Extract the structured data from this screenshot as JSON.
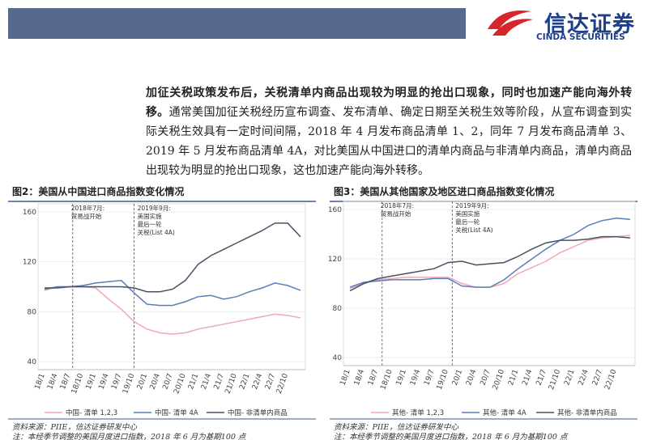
{
  "logo": {
    "name": "信达证券",
    "english": "CINDA SECURITIES"
  },
  "body": {
    "bold": "加征关税政策发布后，关税清单内商品出现较为明显的抢出口现象，同时也加速产能向海外转移。",
    "text": "通常美国加征关税经历宣布调查、发布清单、确定日期至关税生效等阶段，从宣布调查到实际关税生效具有一定时间间隔，2018 年 4 月发布商品清单 1、2，同年 7 月发布商品清单 3、2019 年 5 月发布商品清单 4A，对比美国从中国进口的清单内商品与非清单内商品，清单内商品出现较为明显的抢出口现象，这也加速产能向海外转移。"
  },
  "chart_data": [
    {
      "type": "line",
      "title": "图2：美国从中国进口商品指数变化情况",
      "categories": [
        "18/1",
        "18/4",
        "18/7",
        "18/10",
        "19/1",
        "19/4",
        "19/7",
        "19/10",
        "20/1",
        "20/4",
        "20/7",
        "20/10",
        "21/1",
        "21/4",
        "21/7",
        "21/10",
        "22/1",
        "22/4",
        "22/7",
        "22/10",
        null
      ],
      "series": [
        {
          "name": "中国- 清单 1,2,3",
          "color": "#f2a7b8",
          "values": [
            97,
            100,
            100,
            100,
            99,
            90,
            82,
            72,
            66,
            63,
            62,
            63,
            66,
            68,
            70,
            72,
            74,
            76,
            78,
            77,
            75
          ]
        },
        {
          "name": "中国- 清单 4A",
          "color": "#5b7fb8",
          "values": [
            98,
            100,
            100,
            101,
            103,
            104,
            105,
            95,
            86,
            85,
            85,
            88,
            92,
            93,
            90,
            92,
            96,
            99,
            103,
            101,
            97
          ]
        },
        {
          "name": "中国- 非清单内商品",
          "color": "#4a5064",
          "values": [
            99,
            99,
            100,
            100,
            100,
            100,
            100,
            99,
            96,
            96,
            98,
            105,
            118,
            125,
            130,
            135,
            140,
            145,
            151,
            151,
            140
          ]
        }
      ],
      "ylim": [
        40,
        160
      ],
      "yticks": [
        40,
        80,
        120,
        160
      ],
      "annotations": [
        [
          "2018年7月:",
          "贸易战开始"
        ],
        [
          "2019年9月:",
          "美国实施",
          "最后一轮",
          "关税(List 4A)"
        ]
      ],
      "source": "资料来源：PIIE，信达证券研发中心",
      "note": "注：本经季节调整的美国月度进口指数，2018 年 6 月为基期100 点"
    },
    {
      "type": "line",
      "title": "图3：美国从其他国家及地区进口商品指数变化情况",
      "categories": [
        "18/1",
        "18/4",
        "18/7",
        "18/10",
        "19/1",
        "19/4",
        "19/7",
        "19/10",
        "20/1",
        "20/4",
        "20/7",
        "20/10",
        "21/1",
        "21/4",
        "21/7",
        "21/10",
        "22/1",
        "22/4",
        "22/7",
        "22/10",
        null
      ],
      "series": [
        {
          "name": "其他- 清单 1,2,3",
          "color": "#f2a7b8",
          "values": [
            96,
            100,
            103,
            104,
            105,
            105,
            105,
            105,
            100,
            97,
            97,
            100,
            108,
            113,
            118,
            125,
            130,
            135,
            137,
            138,
            139
          ]
        },
        {
          "name": "其他- 清单 4A",
          "color": "#5b7fb8",
          "values": [
            97,
            101,
            102,
            103,
            103,
            103,
            104,
            104,
            98,
            97,
            97,
            103,
            112,
            120,
            128,
            135,
            140,
            147,
            151,
            153,
            152
          ]
        },
        {
          "name": "其他- 非清单内商品",
          "color": "#4a5064",
          "values": [
            94,
            100,
            104,
            106,
            108,
            110,
            112,
            117,
            118,
            115,
            116,
            117,
            122,
            128,
            133,
            135,
            135,
            136,
            138,
            138,
            137
          ]
        }
      ],
      "ylim": [
        40,
        160
      ],
      "yticks": [
        40,
        80,
        120,
        160
      ],
      "annotations": [
        [
          "2018年7月:",
          "贸易战开始"
        ],
        [
          "2019年9月:",
          "美国实施",
          "最后一轮",
          "关税(List 4A)"
        ]
      ],
      "source": "资料来源：PIIE，信达证券研发中心",
      "note": "注：本经季节调整的美国月度进口指数，2018 年 6 月为基期100 点"
    }
  ]
}
